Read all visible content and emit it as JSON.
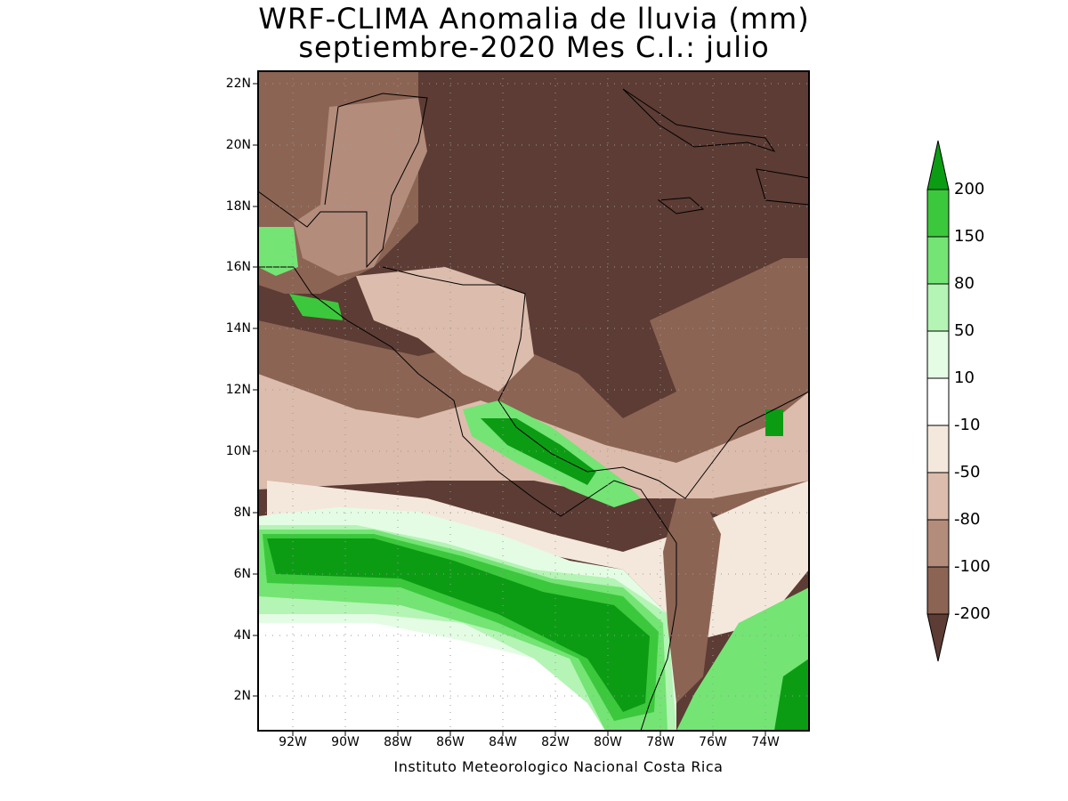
{
  "title": {
    "line1": "WRF-CLIMA Anomalia de lluvia (mm)",
    "line2": "septiembre-2020 Mes C.I.: julio"
  },
  "credit": "Instituto Meteorologico Nacional Costa Rica",
  "map": {
    "lat_labels": [
      "22N",
      "20N",
      "18N",
      "16N",
      "14N",
      "12N",
      "10N",
      "8N",
      "6N",
      "4N",
      "2N"
    ],
    "lon_labels": [
      "92W",
      "90W",
      "88W",
      "86W",
      "84W",
      "82W",
      "80W",
      "78W",
      "76W",
      "74W"
    ],
    "grid": true
  },
  "legend": {
    "levels": [
      "200",
      "150",
      "80",
      "50",
      "10",
      "-10",
      "-50",
      "-80",
      "-100",
      "-200"
    ],
    "colors": [
      "#0c9c14",
      "#3cc83c",
      "#74e474",
      "#b4f4b4",
      "#e4fce4",
      "#ffffff",
      "#f4e8dc",
      "#dcbcac",
      "#b48c7c",
      "#8c6454",
      "#5c3c34"
    ]
  }
}
